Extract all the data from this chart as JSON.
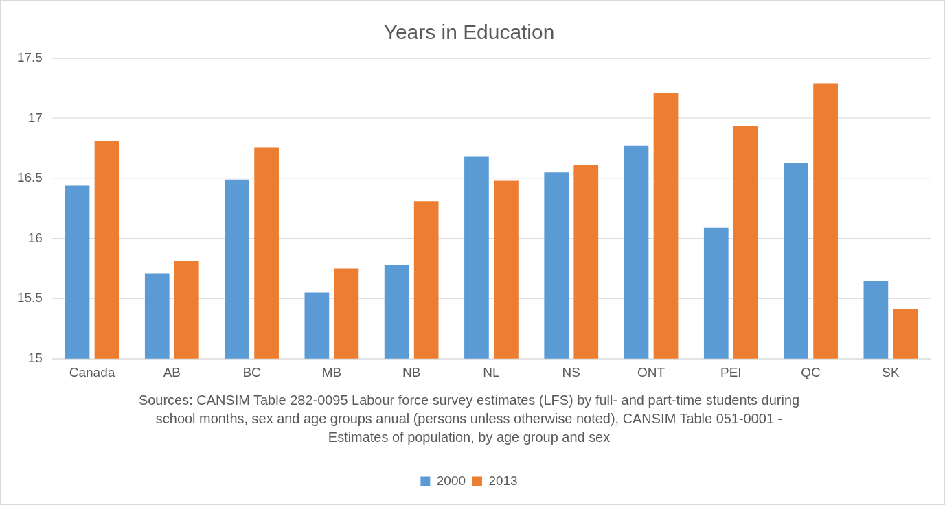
{
  "chart_data": {
    "type": "bar",
    "title": "Years in Education",
    "categories": [
      "Canada",
      "AB",
      "BC",
      "MB",
      "NB",
      "NL",
      "NS",
      "ONT",
      "PEI",
      "QC",
      "SK"
    ],
    "series": [
      {
        "name": "2000",
        "color": "#5b9bd5",
        "values": [
          16.44,
          15.71,
          16.49,
          15.55,
          15.78,
          16.68,
          16.55,
          16.77,
          16.09,
          16.63,
          15.65
        ]
      },
      {
        "name": "2013",
        "color": "#ed7d31",
        "values": [
          16.81,
          15.81,
          16.76,
          15.75,
          16.31,
          16.48,
          16.61,
          17.21,
          16.94,
          17.29,
          15.41
        ]
      }
    ],
    "ylim": [
      15,
      17.5
    ],
    "yticks": [
      15,
      15.5,
      16,
      16.5,
      17,
      17.5
    ],
    "grid": "y",
    "legend": "bottom",
    "annotations": [
      "Sources: CANSIM Table 282-0095 Labour force survey estimates (LFS) by full- and part-time students during school months, sex and age groups anual (persons unless otherwise noted), CANSIM Table 051-0001 - Estimates of population, by age group and sex"
    ]
  }
}
